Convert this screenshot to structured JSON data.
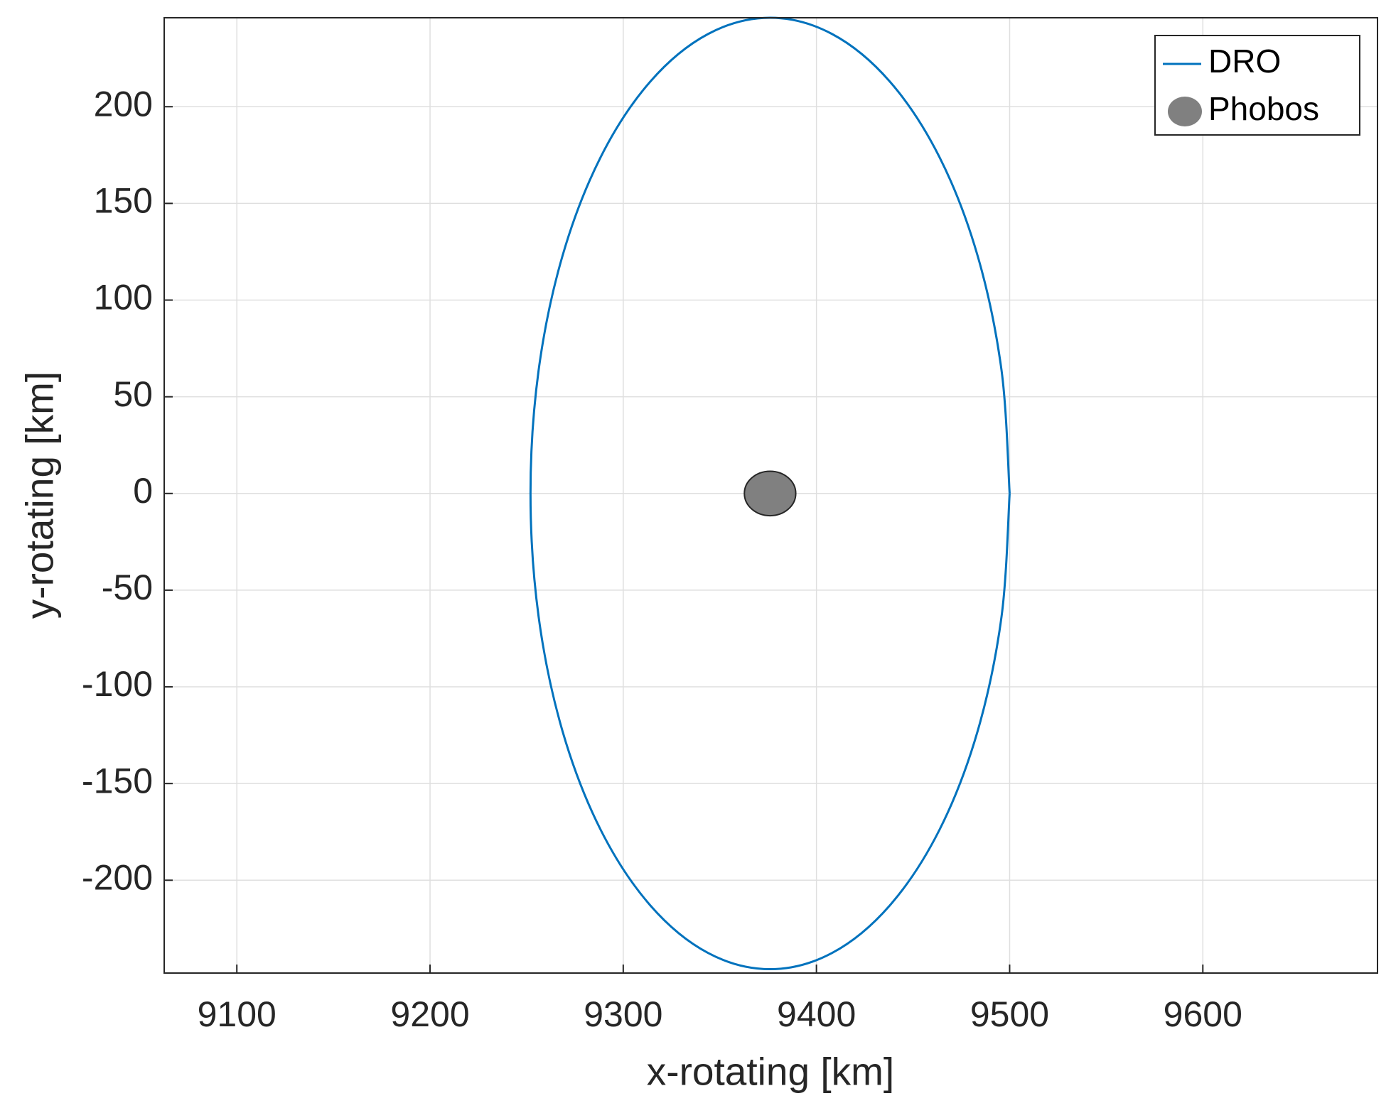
{
  "chart_data": {
    "type": "orbit",
    "xlabel": "x-rotating [km]",
    "ylabel": "y-rotating [km]",
    "xlim": [
      9062.4,
      9690.4
    ],
    "ylim": [
      -248,
      246
    ],
    "xticks": [
      9100,
      9200,
      9300,
      9400,
      9500,
      9600
    ],
    "yticks": [
      -200,
      -150,
      -100,
      -50,
      0,
      50,
      100,
      150,
      200
    ],
    "grid": true,
    "legend": "upper right",
    "series": [
      {
        "name": "DRO",
        "color": "#0072bd",
        "x": [
          9500,
          9495.8,
          9483.4,
          9463.7,
          9438,
          9408.1,
          9376,
          9343.9,
          9314,
          9288.3,
          9268.6,
          9256.2,
          9252,
          9256.2,
          9268.6,
          9288.3,
          9314,
          9343.9,
          9376,
          9408.1,
          9438,
          9463.7,
          9483.4,
          9495.8,
          9500
        ],
        "y": [
          0,
          63.7,
          123,
          173.9,
          213,
          237.6,
          246,
          237.6,
          213,
          173.9,
          123,
          63.7,
          0,
          -63.7,
          -123,
          -173.9,
          -213,
          -237.6,
          -246,
          -237.6,
          -213,
          -173.9,
          -123,
          -63.7,
          0
        ]
      },
      {
        "name": "Phobos",
        "color": "#808080",
        "center": [
          9376,
          0
        ],
        "radii": [
          13.3,
          11.5
        ]
      }
    ]
  }
}
